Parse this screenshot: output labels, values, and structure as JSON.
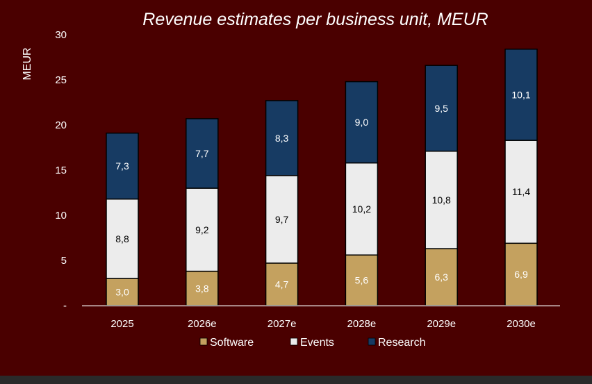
{
  "chart_data": {
    "type": "bar",
    "stacked": true,
    "title": "Revenue estimates per business unit, MEUR",
    "ylabel": "MEUR",
    "xlabel": "",
    "ylim": [
      0,
      30
    ],
    "yticks": [
      "-",
      "5",
      "10",
      "15",
      "20",
      "25",
      "30"
    ],
    "ytick_values": [
      0,
      5,
      10,
      15,
      20,
      25,
      30
    ],
    "categories": [
      "2025",
      "2026e",
      "2027e",
      "2028e",
      "2029e",
      "2030e"
    ],
    "series": [
      {
        "name": "Software",
        "color": "#c4a15f",
        "label_color": "#ffffff",
        "values": [
          3.0,
          3.8,
          4.7,
          5.6,
          6.3,
          6.9
        ],
        "labels": [
          "3,0",
          "3,8",
          "4,7",
          "5,6",
          "6,3",
          "6,9"
        ]
      },
      {
        "name": "Events",
        "color": "#ececec",
        "label_color": "#000000",
        "values": [
          8.8,
          9.2,
          9.7,
          10.2,
          10.8,
          11.4
        ],
        "labels": [
          "8,8",
          "9,2",
          "9,7",
          "10,2",
          "10,8",
          "11,4"
        ]
      },
      {
        "name": "Research",
        "color": "#173b63",
        "label_color": "#ffffff",
        "values": [
          7.3,
          7.7,
          8.3,
          9.0,
          9.5,
          10.1
        ],
        "labels": [
          "7,3",
          "7,7",
          "8,3",
          "9,0",
          "9,5",
          "10,1"
        ]
      }
    ],
    "grid": false,
    "legend_position": "bottom",
    "background_color": "#4a0000",
    "axis_color": "#ffffff"
  }
}
